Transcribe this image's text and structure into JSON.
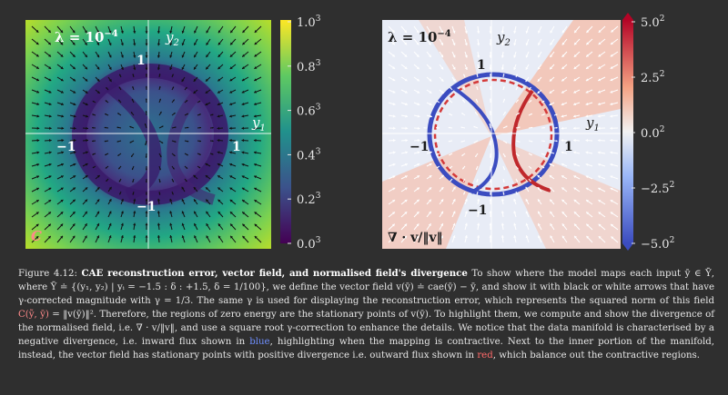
{
  "left_plot": {
    "lambda_label": "λ = 10",
    "lambda_exp": "−4",
    "axis_y_label": "y",
    "axis_y_sub": "2",
    "axis_x_label": "y",
    "axis_x_sub": "1",
    "tick_pos_y": "1",
    "tick_neg_y": "−1",
    "tick_pos_x": "1",
    "tick_neg_x": "−1",
    "corner_label": "C",
    "colorbar_ticks": [
      {
        "base": "1.0",
        "exp": "3"
      },
      {
        "base": "0.8",
        "exp": "3"
      },
      {
        "base": "0.6",
        "exp": "3"
      },
      {
        "base": "0.4",
        "exp": "3"
      },
      {
        "base": "0.2",
        "exp": "3"
      },
      {
        "base": "0.0",
        "exp": "3"
      }
    ],
    "colors": {
      "low": "#440154",
      "mid": "#21918c",
      "high": "#fde725"
    }
  },
  "right_plot": {
    "lambda_label": "λ = 10",
    "lambda_exp": "−4",
    "axis_y_label": "y",
    "axis_y_sub": "2",
    "axis_x_label": "y",
    "axis_x_sub": "1",
    "tick_pos_y": "1",
    "tick_neg_y": "−1",
    "tick_pos_x": "1",
    "tick_neg_x": "−1",
    "corner_label": "∇ · v/‖v‖",
    "colorbar_ticks": [
      {
        "base": "5.0",
        "exp": "2"
      },
      {
        "base": "2.5",
        "exp": "2"
      },
      {
        "base": "0.0",
        "exp": "2"
      },
      {
        "base": "−2.5",
        "exp": "2"
      },
      {
        "base": "−5.0",
        "exp": "2"
      }
    ],
    "colors": {
      "neg": "#3b4cc0",
      "zero": "#f2f2f2",
      "pos": "#b40426"
    }
  },
  "caption": {
    "figure_label": "Figure 4.12:",
    "title": "CAE reconstruction error, vector field, and normalised field's divergence",
    "s1": "To show where the model maps each input ȳ ∈ Ȳ, where Ȳ ≐ {(y₁, y₂) | yᵢ = −1.5 : δ : +1.5, δ = 1/100}, we define the vector field v(ȳ) ≐ cae(ȳ) − ȳ, and show it with black or white arrows that have γ-corrected magnitude with γ = 1/3. The same γ is used for displaying the reconstruction error, which represents the squared norm of this field ",
    "s1_c": "C(ỹ, ȳ)",
    "s1_end": " = ‖v(ȳ)‖². Therefore, the regions of zero energy are the stationary points of v(ȳ). To highlight them, we compute and show the divergence of the normalised field, i.e. ∇ · v/‖v‖, and use a square root γ-correction to enhance the details. We notice that the data manifold is characterised by a negative divergence, i.e. inward flux shown in ",
    "blue_word": "blue",
    "s2": ", highlighting when the mapping is contractive. Next to the inner portion of the manifold, instead, the vector field has stationary points with positive divergence i.e. outward flux shown in ",
    "red_word": "red",
    "s3": ", which balance out the contractive regions."
  }
}
